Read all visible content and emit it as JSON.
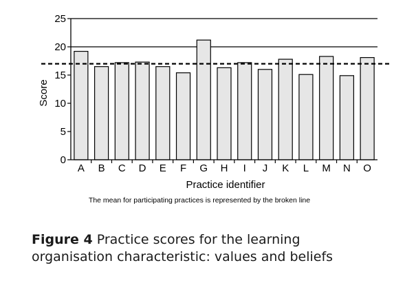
{
  "chart_data": {
    "type": "bar",
    "categories": [
      "A",
      "B",
      "C",
      "D",
      "E",
      "F",
      "G",
      "H",
      "I",
      "J",
      "K",
      "L",
      "M",
      "N",
      "O"
    ],
    "values": [
      19.2,
      16.5,
      17.2,
      17.3,
      16.5,
      15.4,
      21.2,
      16.3,
      17.2,
      16.0,
      17.8,
      15.1,
      18.3,
      14.9,
      18.1
    ],
    "mean": 17,
    "xlabel": "Practice identifier",
    "ylabel": "Score",
    "ylim": [
      0,
      25
    ],
    "yticks": [
      "0",
      "5",
      "10",
      "15",
      "20",
      "25"
    ],
    "ytick_values": [
      0,
      5,
      10,
      15,
      20,
      25
    ],
    "gridlines": [
      20,
      25
    ],
    "grid": "horizontal",
    "bar_color": "#e6e6e6",
    "note": "The mean for participating practices is represented by the broken line"
  },
  "caption": {
    "label": "Figure 4",
    "text_line1": "Practice scores for the learning",
    "text_line2": "organisation characteristic: values and beliefs"
  }
}
